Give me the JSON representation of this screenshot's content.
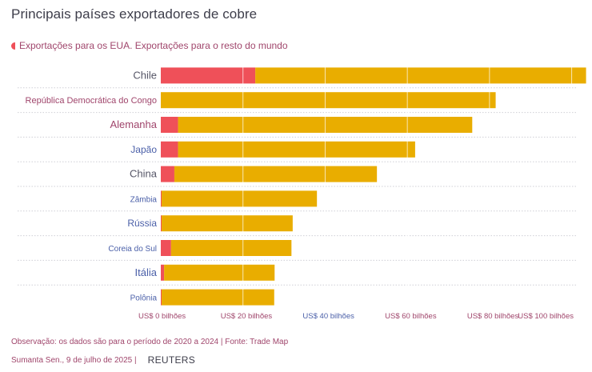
{
  "chart_data": {
    "type": "bar",
    "orientation": "horizontal",
    "stacked": true,
    "title": "Principais países exportadores de cobre",
    "legend_text": "Exportações para os EUA. Exportações para o resto do mundo",
    "categories": [
      "Chile",
      "República Democrática do Congo",
      "Alemanha",
      "Japão",
      "China",
      "Zâmbia",
      "Rússia",
      "Coreia do Sul",
      "Itália",
      "Polônia"
    ],
    "series": [
      {
        "name": "Exportações para os EUA",
        "color": "#ef5059",
        "values": [
          23,
          0,
          4.2,
          4.2,
          3.3,
          0.2,
          0.2,
          2.5,
          0.8,
          0.2
        ]
      },
      {
        "name": "Exportações para o resto do mundo",
        "color": "#e9ad00",
        "values": [
          80.5,
          81.5,
          71.6,
          57.7,
          49.3,
          37.8,
          31.9,
          29.3,
          26.9,
          27.4
        ]
      }
    ],
    "xlim": [
      0,
      103
    ],
    "x_ticks": [
      0,
      20,
      40,
      60,
      80,
      100
    ],
    "x_tick_labels": [
      "US$ 0 bilhões",
      "US$ 20 bilhões",
      "US$ 40 bilhões",
      "US$ 60 bilhões",
      "US$ 80 bilhões",
      "US$ 100 bilhões"
    ],
    "grid": true,
    "legend_position": "top-left",
    "label_colors": [
      "#555566",
      "#a0466c",
      "#a0466c",
      "#4a5fa8",
      "#555566",
      "#4a5fa8",
      "#4a5fa8",
      "#4a5fa8",
      "#4a5fa8",
      "#4a5fa8"
    ],
    "tick_label_colors": [
      "#a0466c",
      "#a0466c",
      "#4a5fa8",
      "#a0466c",
      "#a0466c",
      "#a0466c"
    ]
  },
  "footer": {
    "note": "Observação: os dados são para o período de 2020 a 2024 | Fonte: Trade Map",
    "byline": "Sumanta Sen., 9 de julho de 2025 |",
    "brand": "REUTERS"
  }
}
